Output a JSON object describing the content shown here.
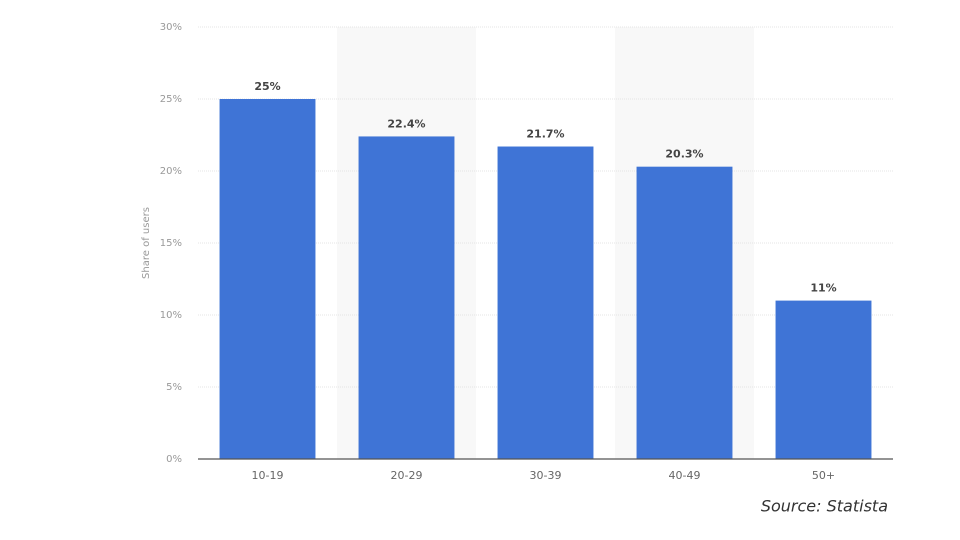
{
  "chart_data": {
    "type": "bar",
    "y_axis_label": "Share of users",
    "source": "Source: Statista",
    "categories": [
      "10-19",
      "20-29",
      "30-39",
      "40-49",
      "50+"
    ],
    "values": [
      25,
      22.4,
      21.7,
      20.3,
      11
    ],
    "value_labels": [
      "25%",
      "22.4%",
      "21.7%",
      "20.3%",
      "11%"
    ],
    "color": "#3f74d6",
    "ylim": [
      0,
      30
    ],
    "yticks": [
      {
        "value": 0,
        "label": "0%"
      },
      {
        "value": 5,
        "label": "5%"
      },
      {
        "value": 10,
        "label": "10%"
      },
      {
        "value": 15,
        "label": "15%"
      },
      {
        "value": 20,
        "label": "20%"
      },
      {
        "value": 25,
        "label": "25%"
      },
      {
        "value": 30,
        "label": "30%"
      }
    ],
    "grid": true
  }
}
